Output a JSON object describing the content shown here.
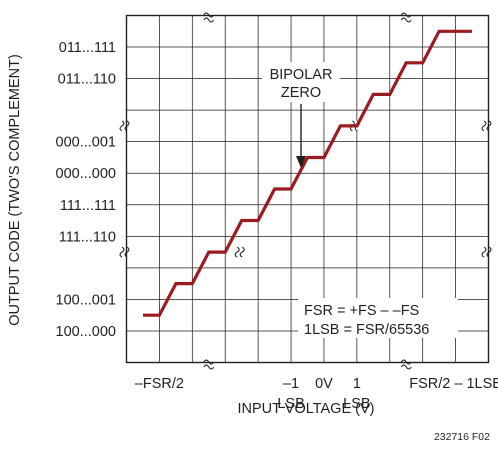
{
  "chart_data": {
    "type": "line",
    "ylabel": "OUTPUT CODE (TWO'S COMPLEMENT)",
    "xlabel": "INPUT VOLTAGE (V)",
    "y_tick_labels": [
      "011...111",
      "011...110",
      "000...001",
      "000...000",
      "111...111",
      "111...110",
      "100...001",
      "100...000"
    ],
    "x_tick_labels": [
      {
        "top": "–FSR/2",
        "bottom": ""
      },
      {
        "top": "–1",
        "bottom": "LSB"
      },
      {
        "top": "0V",
        "bottom": ""
      },
      {
        "top": "1",
        "bottom": "LSB"
      },
      {
        "top": "FSR/2 – 1LSB",
        "bottom": ""
      }
    ],
    "annotation": [
      "BIPOLAR",
      "ZERO"
    ],
    "formula_lines": [
      "FSR = +FS – –FS",
      "1LSB = FSR/65536"
    ],
    "figure_id": "232716 F02",
    "line_color": "#9b1b1e",
    "grid": true,
    "series": [
      {
        "x": [
          -10,
          -9,
          -8,
          -7,
          -6,
          -5,
          -4,
          -3,
          -2,
          -1,
          0,
          1,
          2,
          3,
          4,
          5,
          6,
          7,
          8,
          9,
          10
        ],
        "y": [
          0,
          0,
          1,
          1,
          2,
          2,
          3,
          3,
          4,
          4,
          5,
          5,
          6,
          6,
          7,
          7,
          8,
          8,
          9,
          9,
          9
        ]
      }
    ]
  }
}
